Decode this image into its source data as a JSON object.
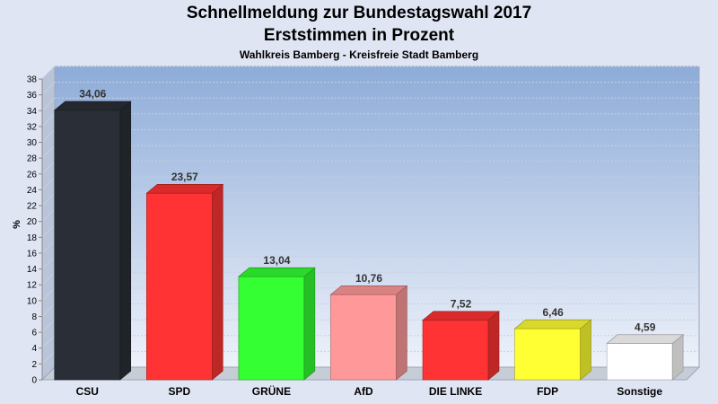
{
  "chart_data": {
    "type": "bar",
    "title": "Schnellmeldung zur Bundestagswahl 2017",
    "subtitle_line": "Erststimmen in Prozent",
    "caption": "Wahlkreis Bamberg - Kreisfreie Stadt Bamberg",
    "ylabel": "%",
    "xlabel": "",
    "ylim": [
      0,
      38
    ],
    "yticks": [
      0,
      2,
      4,
      6,
      8,
      10,
      12,
      14,
      16,
      18,
      20,
      22,
      24,
      26,
      28,
      30,
      32,
      34,
      36,
      38
    ],
    "categories": [
      "CSU",
      "SPD",
      "GRÜNE",
      "AfD",
      "DIE LINKE",
      "FDP",
      "Sonstige"
    ],
    "values": [
      34.06,
      23.57,
      13.04,
      10.76,
      7.52,
      6.46,
      4.59
    ],
    "value_labels": [
      "34,06",
      "23,57",
      "13,04",
      "10,76",
      "7,52",
      "6,46",
      "4,59"
    ],
    "colors": [
      "#2a2e36",
      "#ff3333",
      "#33ff33",
      "#ff9999",
      "#ff3333",
      "#ffff33",
      "#ffffff"
    ],
    "grid": true,
    "legend": "none"
  }
}
